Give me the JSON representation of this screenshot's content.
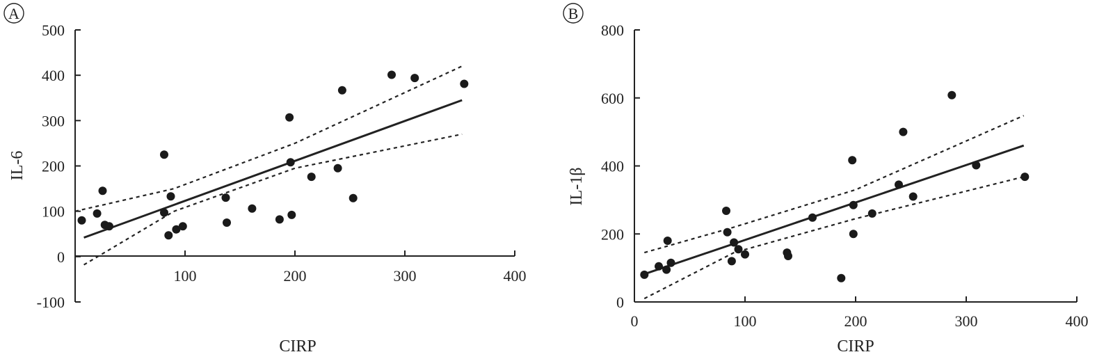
{
  "chart_data": [
    {
      "type": "scatter",
      "panel": "A",
      "xlabel": "CIRP",
      "ylabel": "IL-6",
      "xlim": [
        0,
        400
      ],
      "ylim": [
        -100,
        500
      ],
      "xticks": [
        "100",
        "200",
        "300",
        "400"
      ],
      "yticks": [
        "-100",
        "0",
        "100",
        "200",
        "300",
        "400",
        "500"
      ],
      "y_tick_values": [
        -100,
        0,
        100,
        200,
        300,
        400,
        500
      ],
      "x_tick_values": [
        100,
        200,
        300,
        400
      ],
      "grid": false,
      "points": [
        {
          "x": 6,
          "y": 80
        },
        {
          "x": 20,
          "y": 95
        },
        {
          "x": 25,
          "y": 145
        },
        {
          "x": 27,
          "y": 70
        },
        {
          "x": 31,
          "y": 67
        },
        {
          "x": 81,
          "y": 225
        },
        {
          "x": 81,
          "y": 97
        },
        {
          "x": 85,
          "y": 47
        },
        {
          "x": 87,
          "y": 133
        },
        {
          "x": 92,
          "y": 60
        },
        {
          "x": 98,
          "y": 67
        },
        {
          "x": 137,
          "y": 130
        },
        {
          "x": 138,
          "y": 75
        },
        {
          "x": 161,
          "y": 106
        },
        {
          "x": 186,
          "y": 82
        },
        {
          "x": 195,
          "y": 307
        },
        {
          "x": 196,
          "y": 208
        },
        {
          "x": 197,
          "y": 92
        },
        {
          "x": 215,
          "y": 176
        },
        {
          "x": 239,
          "y": 195
        },
        {
          "x": 243,
          "y": 367
        },
        {
          "x": 253,
          "y": 129
        },
        {
          "x": 288,
          "y": 401
        },
        {
          "x": 309,
          "y": 394
        },
        {
          "x": 354,
          "y": 381
        }
      ],
      "fit_line": [
        {
          "x": 8,
          "y": 42
        },
        {
          "x": 352,
          "y": 345
        }
      ],
      "ci_upper": [
        {
          "x": 0,
          "y": 100
        },
        {
          "x": 90,
          "y": 150
        },
        {
          "x": 200,
          "y": 250
        },
        {
          "x": 352,
          "y": 420
        }
      ],
      "ci_lower": [
        {
          "x": 8,
          "y": -18
        },
        {
          "x": 90,
          "y": 100
        },
        {
          "x": 200,
          "y": 195
        },
        {
          "x": 352,
          "y": 270
        }
      ]
    },
    {
      "type": "scatter",
      "panel": "B",
      "xlabel": "CIRP",
      "ylabel": "IL-1β",
      "xlim": [
        0,
        400
      ],
      "ylim": [
        0,
        800
      ],
      "xticks": [
        "0",
        "100",
        "200",
        "300",
        "400"
      ],
      "yticks": [
        "0",
        "200",
        "400",
        "600",
        "800"
      ],
      "y_tick_values": [
        0,
        200,
        400,
        600,
        800
      ],
      "x_tick_values": [
        0,
        100,
        200,
        300,
        400
      ],
      "grid": false,
      "points": [
        {
          "x": 9,
          "y": 80
        },
        {
          "x": 22,
          "y": 105
        },
        {
          "x": 29,
          "y": 95
        },
        {
          "x": 30,
          "y": 180
        },
        {
          "x": 33,
          "y": 115
        },
        {
          "x": 83,
          "y": 268
        },
        {
          "x": 84,
          "y": 205
        },
        {
          "x": 88,
          "y": 120
        },
        {
          "x": 90,
          "y": 175
        },
        {
          "x": 94,
          "y": 155
        },
        {
          "x": 100,
          "y": 140
        },
        {
          "x": 138,
          "y": 145
        },
        {
          "x": 139,
          "y": 135
        },
        {
          "x": 161,
          "y": 248
        },
        {
          "x": 187,
          "y": 70
        },
        {
          "x": 197,
          "y": 417
        },
        {
          "x": 198,
          "y": 285
        },
        {
          "x": 198,
          "y": 200
        },
        {
          "x": 215,
          "y": 260
        },
        {
          "x": 239,
          "y": 345
        },
        {
          "x": 243,
          "y": 500
        },
        {
          "x": 252,
          "y": 310
        },
        {
          "x": 287,
          "y": 608
        },
        {
          "x": 309,
          "y": 402
        },
        {
          "x": 353,
          "y": 368
        }
      ],
      "fit_line": [
        {
          "x": 9,
          "y": 82
        },
        {
          "x": 352,
          "y": 460
        }
      ],
      "ci_upper": [
        {
          "x": 9,
          "y": 145
        },
        {
          "x": 90,
          "y": 220
        },
        {
          "x": 200,
          "y": 330
        },
        {
          "x": 352,
          "y": 548
        }
      ],
      "ci_lower": [
        {
          "x": 9,
          "y": 10
        },
        {
          "x": 90,
          "y": 145
        },
        {
          "x": 200,
          "y": 245
        },
        {
          "x": 352,
          "y": 368
        }
      ]
    }
  ],
  "colors": {
    "ink": "#222222",
    "point": "#1a1a1a",
    "background": "#ffffff"
  }
}
